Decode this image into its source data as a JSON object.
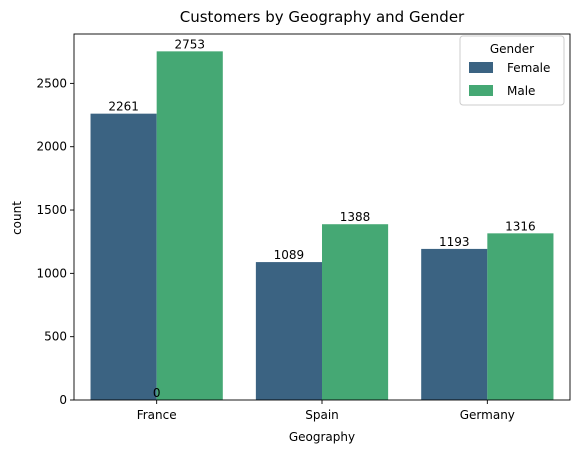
{
  "chart_data": {
    "type": "bar",
    "title": "Customers by Geography and Gender",
    "xlabel": "Geography",
    "ylabel": "count",
    "categories": [
      "France",
      "Spain",
      "Germany"
    ],
    "series": [
      {
        "name": "Female",
        "values": [
          2261,
          1089,
          1193
        ],
        "color": "#3b6382"
      },
      {
        "name": "Male",
        "values": [
          2753,
          1388,
          1316
        ],
        "color": "#45a874"
      }
    ],
    "data_labels": [
      [
        "2261",
        "1089",
        "1193"
      ],
      [
        "2753",
        "1388",
        "1316"
      ]
    ],
    "extra_label": "0",
    "ylim": [
      0,
      2890
    ],
    "yticks": [
      0,
      500,
      1000,
      1500,
      2000,
      2500
    ],
    "grid": false,
    "legend": {
      "title": "Gender",
      "placement": "top-right"
    }
  }
}
